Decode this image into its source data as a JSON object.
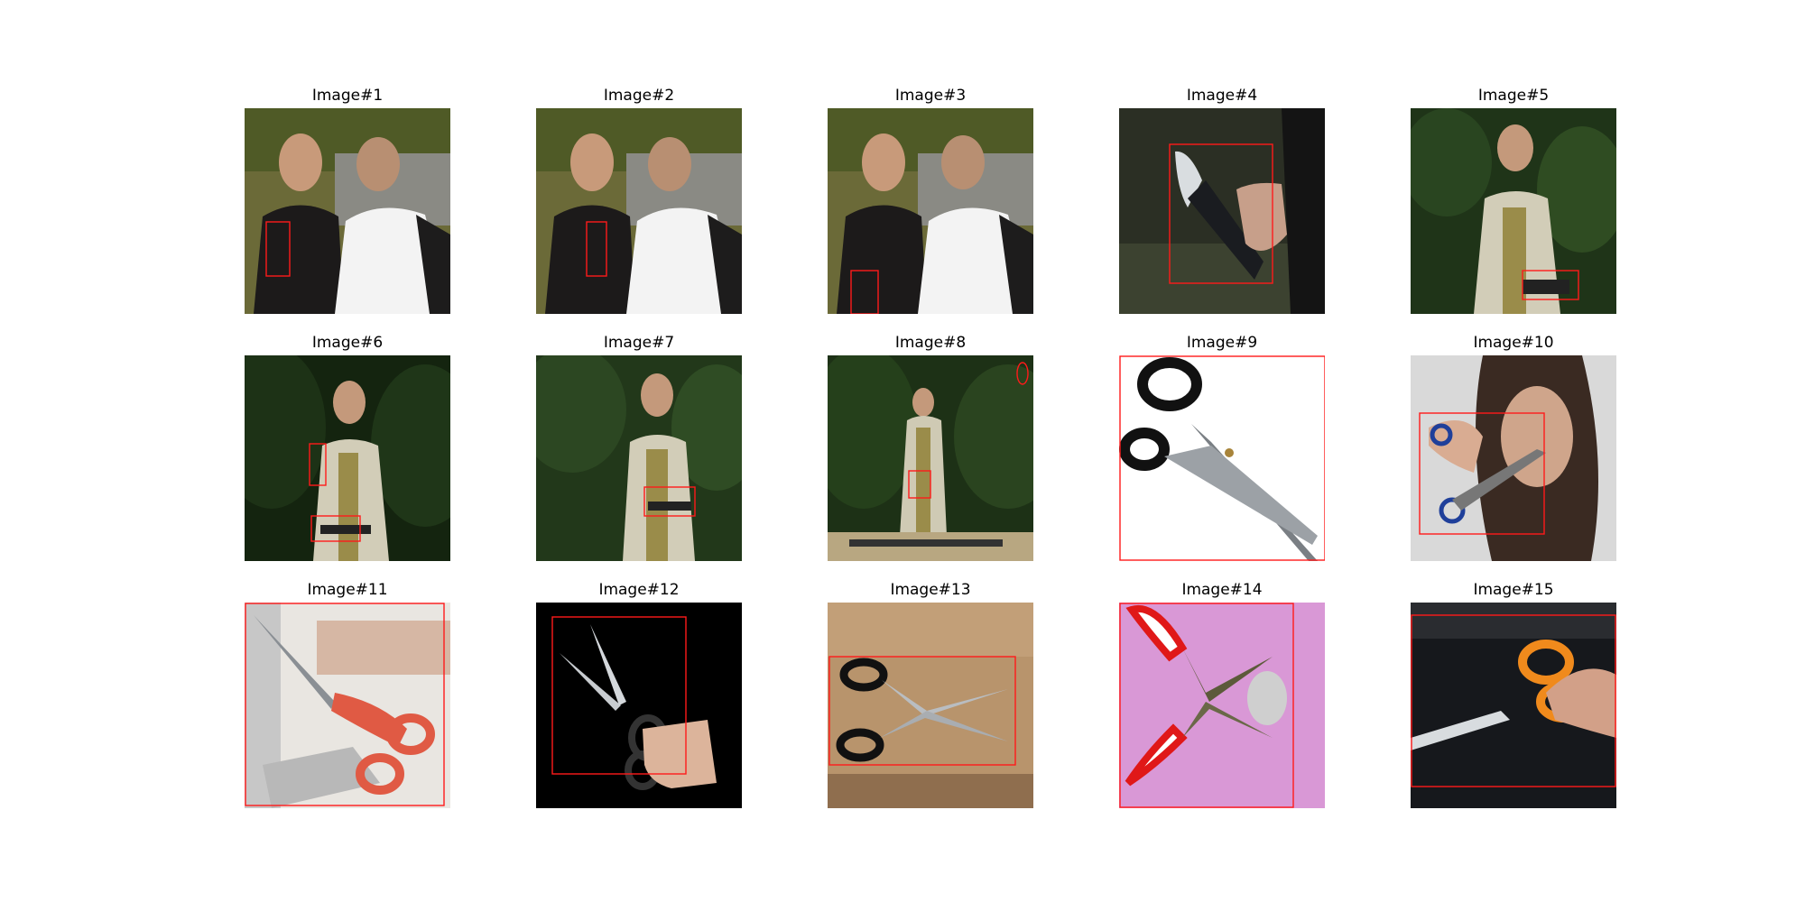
{
  "figure": {
    "panels": [
      {
        "title": "Image#1"
      },
      {
        "title": "Image#2"
      },
      {
        "title": "Image#3"
      },
      {
        "title": "Image#4"
      },
      {
        "title": "Image#5"
      },
      {
        "title": "Image#6"
      },
      {
        "title": "Image#7"
      },
      {
        "title": "Image#8"
      },
      {
        "title": "Image#9"
      },
      {
        "title": "Image#10"
      },
      {
        "title": "Image#11"
      },
      {
        "title": "Image#12"
      },
      {
        "title": "Image#13"
      },
      {
        "title": "Image#14"
      },
      {
        "title": "Image#15"
      }
    ],
    "colors": {
      "bbox": "#ff1a1a"
    }
  }
}
